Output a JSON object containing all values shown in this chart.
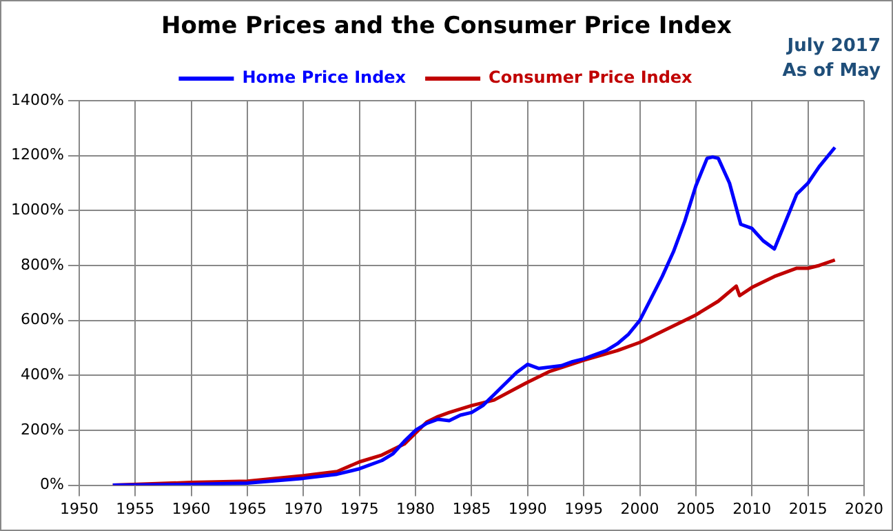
{
  "chart_data": {
    "type": "line",
    "title": "Home Prices and the Consumer Price Index",
    "annotations": [
      "July 2017",
      "As of May"
    ],
    "series": [
      {
        "name": "Home Price Index",
        "color": "#0000ff",
        "x": [
          1953,
          1960,
          1965,
          1970,
          1973,
          1975,
          1977,
          1978,
          1979,
          1980,
          1981,
          1982,
          1983,
          1984,
          1985,
          1986,
          1987,
          1988,
          1989,
          1990,
          1991,
          1992,
          1993,
          1994,
          1995,
          1996,
          1997,
          1998,
          1999,
          2000,
          2001,
          2002,
          2003,
          2004,
          2005,
          2006,
          2006.5,
          2007,
          2008,
          2009,
          2010,
          2011,
          2012,
          2013,
          2014,
          2015,
          2016,
          2017.4
        ],
        "values": [
          0,
          3,
          8,
          25,
          40,
          60,
          90,
          115,
          160,
          200,
          225,
          240,
          235,
          255,
          265,
          290,
          330,
          370,
          410,
          440,
          425,
          430,
          435,
          450,
          460,
          475,
          490,
          515,
          550,
          600,
          680,
          760,
          850,
          960,
          1090,
          1190,
          1195,
          1190,
          1100,
          950,
          935,
          890,
          860,
          960,
          1060,
          1100,
          1160,
          1230
        ]
      },
      {
        "name": "Consumer Price Index",
        "color": "#c00000",
        "x": [
          1953,
          1960,
          1965,
          1970,
          1973,
          1975,
          1977,
          1979,
          1980,
          1981,
          1982,
          1983,
          1985,
          1987,
          1990,
          1992,
          1995,
          1998,
          2000,
          2002,
          2005,
          2007,
          2008.6,
          2008.9,
          2010,
          2012,
          2014,
          2015,
          2016,
          2017.4
        ],
        "values": [
          0,
          10,
          15,
          35,
          50,
          85,
          110,
          150,
          190,
          230,
          250,
          265,
          290,
          310,
          375,
          415,
          455,
          490,
          520,
          560,
          620,
          670,
          725,
          690,
          720,
          760,
          790,
          790,
          800,
          820
        ]
      }
    ],
    "xlim": [
      1950,
      2020
    ],
    "xticks": [
      1950,
      1955,
      1960,
      1965,
      1970,
      1975,
      1980,
      1985,
      1990,
      1995,
      2000,
      2005,
      2010,
      2015,
      2020
    ],
    "ylim": [
      0,
      1400
    ],
    "yticks": [
      {
        "value": 0,
        "label": "0%"
      },
      {
        "value": 200,
        "label": "200%"
      },
      {
        "value": 400,
        "label": "400%"
      },
      {
        "value": 600,
        "label": "600%"
      },
      {
        "value": 800,
        "label": "800%"
      },
      {
        "value": 1000,
        "label": "1000%"
      },
      {
        "value": 1200,
        "label": "1200%"
      },
      {
        "value": 1400,
        "label": "1400%"
      }
    ],
    "grid": true,
    "legend": "top",
    "marker": "none",
    "line_style": "solid"
  }
}
